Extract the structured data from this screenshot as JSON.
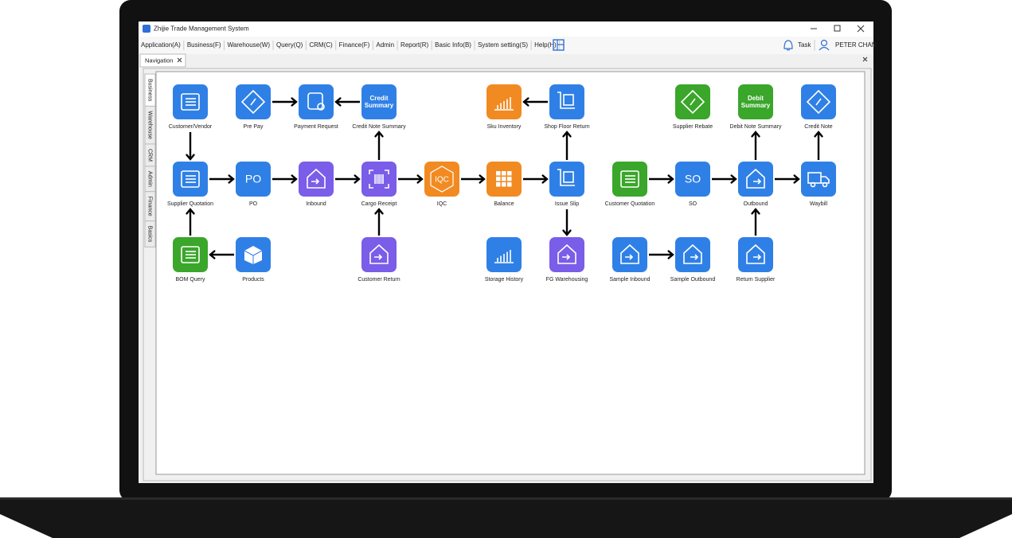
{
  "window": {
    "title": "Zhijie Trade Management System"
  },
  "menu": [
    "Application(A)",
    "Business(F)",
    "Warehouse(W)",
    "Query(Q)",
    "CRM(C)",
    "Finance(F)",
    "Admin",
    "Report(R)",
    "Basic Info(B)",
    "System setting(S)",
    "Help(H)"
  ],
  "toolbar": {
    "task": "Task",
    "user": "PETER CHAN"
  },
  "tabs": [
    "Navigation"
  ],
  "side_tabs": [
    "Business",
    "Warehouse",
    "CRM",
    "Admin",
    "Finance",
    "Basics"
  ],
  "nodes": [
    {
      "label": "Customer/Vendor"
    },
    {
      "label": "Pre Pay"
    },
    {
      "label": "Payment Request"
    },
    {
      "label": "Credit Note Summary",
      "icon_text": [
        "Credit",
        "Summary"
      ]
    },
    {
      "label": "Sku Inventory"
    },
    {
      "label": "Shop Floor Return"
    },
    {
      "label": "Supplier Rebate"
    },
    {
      "label": "Debit Note Summary",
      "icon_text": [
        "Debit",
        "Summary"
      ]
    },
    {
      "label": "Credit Note"
    },
    {
      "label": "Supplier Quotation"
    },
    {
      "label": "PO",
      "icon_text": [
        "PO"
      ]
    },
    {
      "label": "Inbound"
    },
    {
      "label": "Cargo Receipt"
    },
    {
      "label": "IQC",
      "icon_text": [
        "IQC"
      ]
    },
    {
      "label": "Balance"
    },
    {
      "label": "Issue Slip"
    },
    {
      "label": "Customer Quotation"
    },
    {
      "label": "SO",
      "icon_text": [
        "SO"
      ]
    },
    {
      "label": "Outbound"
    },
    {
      "label": "Waybill"
    },
    {
      "label": "BOM Query"
    },
    {
      "label": "Products"
    },
    {
      "label": "Customer Return"
    },
    {
      "label": "Storage History"
    },
    {
      "label": "FG Warehousing"
    },
    {
      "label": "Sample Inbound"
    },
    {
      "label": "Sample Outbound"
    },
    {
      "label": "Return Supplier"
    }
  ]
}
